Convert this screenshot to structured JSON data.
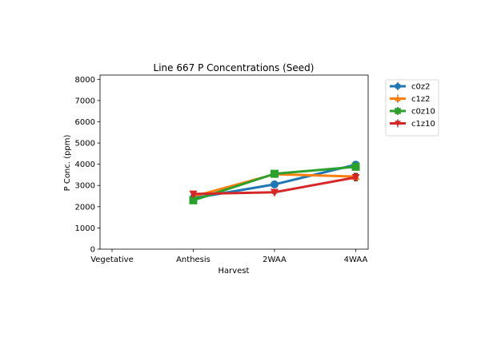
{
  "chart_data": {
    "type": "line",
    "title": "Line 667 P Concentrations (Seed)",
    "xlabel": "Harvest",
    "ylabel": "P Conc. (ppm)",
    "categories": [
      "Vegetative",
      "Anthesis",
      "2WAA",
      "4WAA"
    ],
    "ylim": [
      0,
      8200
    ],
    "yticks": [
      0,
      1000,
      2000,
      3000,
      4000,
      5000,
      6000,
      7000,
      8000
    ],
    "grid": false,
    "legend_position": "outside-top-right",
    "series": [
      {
        "name": "c0z2",
        "color": "#1f77b4",
        "marker": "circle",
        "values": [
          null,
          2400,
          3050,
          3980
        ],
        "errors": [
          null,
          60,
          90,
          80
        ]
      },
      {
        "name": "c1z2",
        "color": "#ff7f0e",
        "marker": "triangle-up",
        "values": [
          null,
          2480,
          3530,
          3420
        ],
        "errors": [
          null,
          60,
          100,
          150
        ]
      },
      {
        "name": "c0z10",
        "color": "#2ca02c",
        "marker": "square",
        "values": [
          null,
          2300,
          3550,
          3880
        ],
        "errors": [
          null,
          70,
          150,
          120
        ]
      },
      {
        "name": "c1z10",
        "color": "#d62728",
        "marker": "triangle-down",
        "values": [
          null,
          2600,
          2680,
          3380
        ],
        "errors": [
          null,
          80,
          60,
          150
        ]
      }
    ]
  }
}
